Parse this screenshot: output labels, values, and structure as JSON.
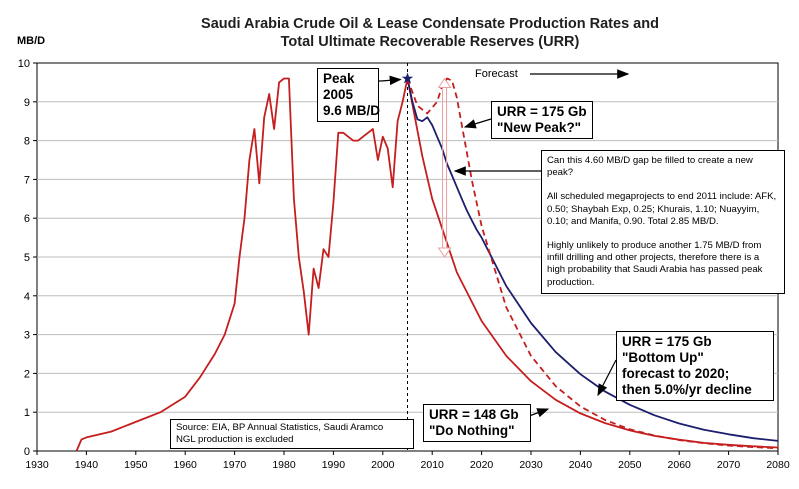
{
  "chart_data": {
    "type": "line",
    "title": "Saudi Arabia Crude Oil & Lease Condensate Production Rates and",
    "subtitle": "Total Ultimate Recoverable Reserves (URR)",
    "ylabel": "MB/D",
    "xlim": [
      1930,
      2080
    ],
    "ylim": [
      0,
      10
    ],
    "x_ticks": [
      "1930",
      "1940",
      "1950",
      "1960",
      "1970",
      "1980",
      "1990",
      "2000",
      "2010",
      "2020",
      "2030",
      "2040",
      "2050",
      "2060",
      "2070",
      "2080"
    ],
    "y_ticks": [
      "0",
      "1",
      "2",
      "3",
      "4",
      "5",
      "6",
      "7",
      "8",
      "9",
      "10"
    ],
    "grid": "horizontal",
    "series": [
      {
        "key": "historical",
        "color": "#c41e1e",
        "dash": "none",
        "x": [
          1938,
          1939,
          1940,
          1945,
          1950,
          1955,
          1960,
          1963,
          1966,
          1968,
          1970,
          1971,
          1972,
          1973,
          1974,
          1975,
          1976,
          1977,
          1978,
          1979,
          1980,
          1981,
          1982,
          1983,
          1984,
          1985,
          1986,
          1987,
          1988,
          1989,
          1990,
          1991,
          1992,
          1993,
          1994,
          1995,
          1996,
          1997,
          1998,
          1999,
          2000,
          2001,
          2002,
          2003,
          2004,
          2005
        ],
        "y": [
          0.0,
          0.3,
          0.35,
          0.5,
          0.75,
          1.0,
          1.4,
          1.9,
          2.5,
          3.0,
          3.8,
          5.0,
          6.0,
          7.5,
          8.3,
          6.9,
          8.6,
          9.2,
          8.3,
          9.5,
          9.6,
          9.6,
          6.5,
          5.0,
          4.1,
          3.0,
          4.7,
          4.2,
          5.2,
          5.0,
          6.4,
          8.2,
          8.2,
          8.1,
          8.0,
          8.0,
          8.1,
          8.2,
          8.3,
          7.5,
          8.1,
          7.8,
          6.8,
          8.5,
          9.0,
          9.6
        ]
      },
      {
        "key": "urr148",
        "color": "#c41e1e",
        "dash": "none",
        "x": [
          2005,
          2008,
          2010,
          2015,
          2020,
          2025,
          2030,
          2035,
          2040,
          2045,
          2050,
          2055,
          2060,
          2065,
          2070,
          2075,
          2080
        ],
        "y": [
          9.6,
          7.6,
          6.5,
          4.6,
          3.35,
          2.45,
          1.8,
          1.32,
          0.97,
          0.72,
          0.53,
          0.39,
          0.29,
          0.21,
          0.16,
          0.12,
          0.09
        ]
      },
      {
        "key": "urr175_bottom_up",
        "color": "#1c1e6e",
        "dash": "none",
        "x": [
          2005,
          2006,
          2007,
          2008,
          2009,
          2010,
          2011,
          2012,
          2013,
          2014,
          2015,
          2016,
          2017,
          2018,
          2019,
          2020,
          2025,
          2030,
          2035,
          2040,
          2045,
          2050,
          2055,
          2060,
          2065,
          2070,
          2075,
          2080
        ],
        "y": [
          9.6,
          9.0,
          8.55,
          8.5,
          8.6,
          8.4,
          8.1,
          7.8,
          7.4,
          7.1,
          6.8,
          6.5,
          6.2,
          5.95,
          5.7,
          5.5,
          4.25,
          3.3,
          2.55,
          1.98,
          1.53,
          1.19,
          0.92,
          0.71,
          0.55,
          0.43,
          0.33,
          0.26
        ]
      },
      {
        "key": "urr175_new_peak",
        "color": "#c41e1e",
        "dash": "6,4",
        "x": [
          2005,
          2007,
          2009,
          2011,
          2012,
          2013,
          2014,
          2015,
          2016,
          2017,
          2018,
          2020,
          2025,
          2030,
          2035,
          2040,
          2045,
          2050,
          2055,
          2060,
          2065,
          2070,
          2075,
          2080
        ],
        "y": [
          9.6,
          8.9,
          8.7,
          9.0,
          9.4,
          9.6,
          9.55,
          9.1,
          8.4,
          7.7,
          7.0,
          5.8,
          3.7,
          2.45,
          1.67,
          1.15,
          0.8,
          0.56,
          0.4,
          0.28,
          0.2,
          0.14,
          0.1,
          0.07
        ]
      }
    ],
    "marker": {
      "label": "Peak",
      "x": 2005,
      "y": 9.6
    },
    "reference_line_x": 2005,
    "gap_arrow": {
      "x": 2012.5,
      "y_from": 5.0,
      "y_to": 9.6
    }
  },
  "annotations": {
    "peak": [
      "Peak",
      "2005",
      "9.6 MB/D"
    ],
    "forecast": "Forecast",
    "urr_new_peak": [
      "URR = 175 Gb",
      "\"New Peak?\""
    ],
    "gap_question": "Can this 4.60 MB/D gap be filled to create a new peak?",
    "megaprojects": "All scheduled megaprojects to end 2011 include: AFK, 0.50; Shaybah Exp, 0.25; Khurais, 1.10; Nuayyim, 0.10; and Manifa, 0.90.  Total 2.85 MB/D.",
    "unlikely": "Highly unlikely to produce another 1.75 MB/D from infill drilling and other projects, therefore there is a high probability that Saudi Arabia has passed peak production.",
    "urr_bottom_up": [
      "URR = 175 Gb",
      "\"Bottom Up\"",
      "forecast to 2020;",
      "then 5.0%/yr decline"
    ],
    "urr_do_nothing": [
      "URR = 148 Gb",
      "\"Do Nothing\""
    ],
    "source": [
      "Source: EIA, BP Annual Statistics, Saudi Aramco",
      "NGL production is excluded"
    ]
  },
  "colors": {
    "grid": "#bdbdbd",
    "axis": "#000000",
    "arrow": "#e8a0a0"
  }
}
